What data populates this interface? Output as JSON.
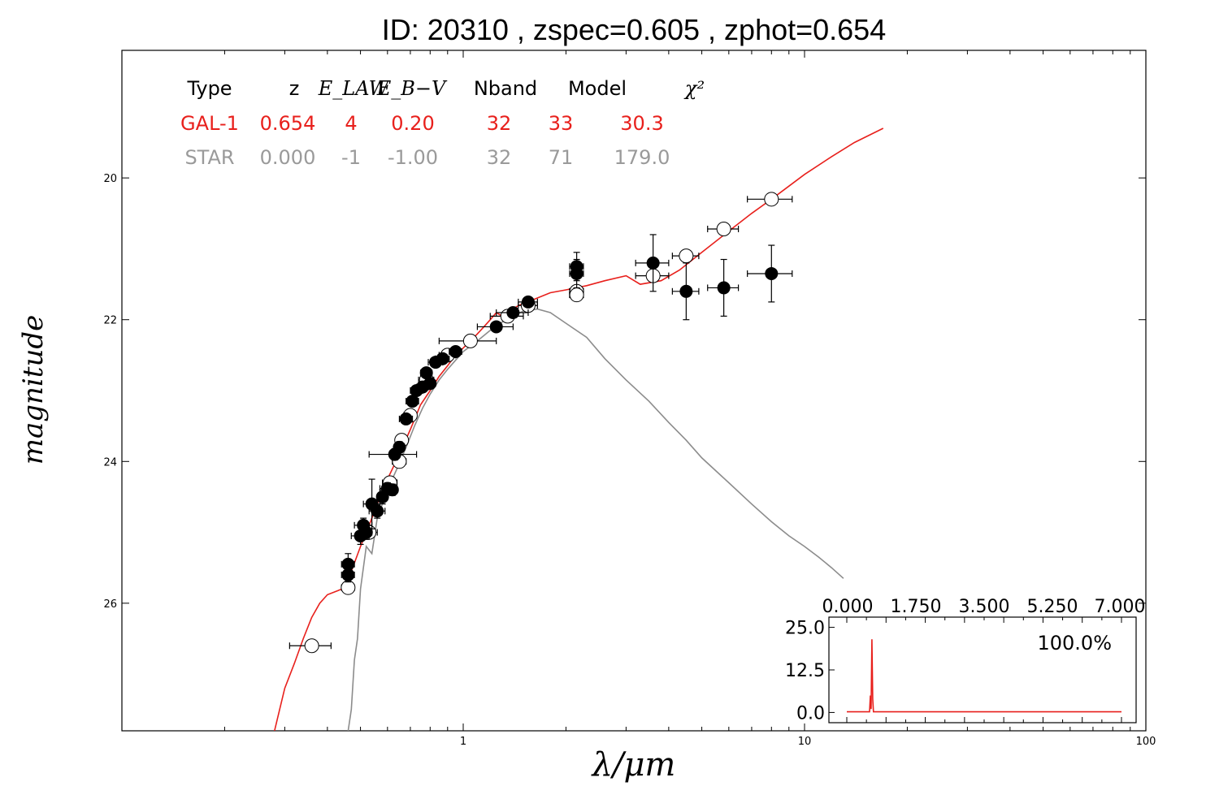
{
  "title": "ID:  20310 , zspec=0.605 , zphot=0.654",
  "table": {
    "headers": [
      "Type",
      "z",
      "E_LAW",
      "E_B−V",
      "Nband",
      "Model",
      "χ²"
    ],
    "rows": [
      {
        "cells": [
          "GAL-1",
          "0.654",
          "4",
          "0.20",
          "32",
          "33",
          "30.3"
        ],
        "color": "#e8201c"
      },
      {
        "cells": [
          "STAR",
          "0.000",
          "-1",
          "-1.00",
          "32",
          "71",
          "179.0"
        ],
        "color": "#9a9a9a"
      }
    ]
  },
  "chart_data": {
    "type": "scatter",
    "xlabel": "λ/μm",
    "ylabel": "magnitude",
    "xscale": "log",
    "xlim": [
      0.1,
      100
    ],
    "ylim": [
      27.8,
      18.2
    ],
    "x_ticks": [
      "1",
      "10",
      "100"
    ],
    "y_ticks": [
      "20",
      "22",
      "24",
      "26"
    ],
    "series": [
      {
        "kind": "line",
        "color": "#e8201c",
        "points": [
          [
            0.28,
            27.8
          ],
          [
            0.3,
            27.2
          ],
          [
            0.32,
            26.85
          ],
          [
            0.34,
            26.5
          ],
          [
            0.36,
            26.2
          ],
          [
            0.38,
            26.0
          ],
          [
            0.4,
            25.88
          ],
          [
            0.43,
            25.82
          ],
          [
            0.45,
            25.78
          ],
          [
            0.47,
            25.55
          ],
          [
            0.5,
            25.2
          ],
          [
            0.53,
            24.9
          ],
          [
            0.56,
            24.6
          ],
          [
            0.6,
            24.25
          ],
          [
            0.65,
            23.9
          ],
          [
            0.7,
            23.55
          ],
          [
            0.75,
            23.2
          ],
          [
            0.8,
            23.0
          ],
          [
            0.85,
            22.8
          ],
          [
            0.9,
            22.65
          ],
          [
            0.95,
            22.5
          ],
          [
            1.0,
            22.4
          ],
          [
            1.05,
            22.3
          ],
          [
            1.1,
            22.2
          ],
          [
            1.15,
            22.1
          ],
          [
            1.2,
            22.0
          ],
          [
            1.25,
            21.9
          ],
          [
            1.3,
            21.95
          ],
          [
            1.35,
            21.9
          ],
          [
            1.45,
            21.8
          ],
          [
            1.6,
            21.72
          ],
          [
            1.8,
            21.62
          ],
          [
            2.0,
            21.58
          ],
          [
            2.3,
            21.52
          ],
          [
            2.6,
            21.45
          ],
          [
            3.0,
            21.38
          ],
          [
            3.3,
            21.5
          ],
          [
            3.8,
            21.45
          ],
          [
            4.3,
            21.3
          ],
          [
            5.0,
            21.05
          ],
          [
            6.0,
            20.75
          ],
          [
            7.0,
            20.5
          ],
          [
            8.0,
            20.3
          ],
          [
            10.0,
            19.95
          ],
          [
            12.0,
            19.7
          ],
          [
            14.0,
            19.5
          ],
          [
            17.0,
            19.3
          ]
        ]
      },
      {
        "kind": "line",
        "color": "#8c8c8c",
        "points": [
          [
            0.46,
            27.8
          ],
          [
            0.47,
            27.5
          ],
          [
            0.48,
            26.8
          ],
          [
            0.49,
            26.5
          ],
          [
            0.5,
            25.8
          ],
          [
            0.52,
            25.2
          ],
          [
            0.54,
            25.3
          ],
          [
            0.56,
            24.8
          ],
          [
            0.6,
            24.4
          ],
          [
            0.64,
            24.1
          ],
          [
            0.68,
            23.8
          ],
          [
            0.72,
            23.5
          ],
          [
            0.76,
            23.25
          ],
          [
            0.8,
            23.05
          ],
          [
            0.85,
            22.85
          ],
          [
            0.9,
            22.7
          ],
          [
            1.0,
            22.45
          ],
          [
            1.1,
            22.3
          ],
          [
            1.2,
            22.15
          ],
          [
            1.35,
            21.98
          ],
          [
            1.5,
            21.88
          ],
          [
            1.65,
            21.85
          ],
          [
            1.8,
            21.9
          ],
          [
            2.0,
            22.05
          ],
          [
            2.3,
            22.25
          ],
          [
            2.6,
            22.55
          ],
          [
            3.0,
            22.85
          ],
          [
            3.5,
            23.15
          ],
          [
            4.0,
            23.45
          ],
          [
            4.5,
            23.7
          ],
          [
            5.0,
            23.95
          ],
          [
            6.0,
            24.3
          ],
          [
            7.0,
            24.6
          ],
          [
            8.0,
            24.85
          ],
          [
            9.0,
            25.05
          ],
          [
            10.0,
            25.2
          ],
          [
            11.0,
            25.35
          ],
          [
            12.0,
            25.5
          ],
          [
            13.0,
            25.65
          ]
        ]
      }
    ],
    "observed": [
      {
        "x": 0.46,
        "y": 25.45,
        "yerr": 0.15,
        "xerr": 0.02
      },
      {
        "x": 0.46,
        "y": 25.6,
        "yerr": 0.1,
        "xerr": 0.02
      },
      {
        "x": 0.5,
        "y": 25.05,
        "yerr": 0.12,
        "xerr": 0.03
      },
      {
        "x": 0.51,
        "y": 24.9,
        "yerr": 0.1,
        "xerr": 0.03
      },
      {
        "x": 0.52,
        "y": 25.0,
        "yerr": 0.1,
        "xerr": 0.02
      },
      {
        "x": 0.54,
        "y": 24.6,
        "yerr": 0.35,
        "xerr": 0.03
      },
      {
        "x": 0.56,
        "y": 24.7,
        "yerr": 0.1,
        "xerr": 0.03
      },
      {
        "x": 0.58,
        "y": 24.5,
        "yerr": 0.1,
        "xerr": 0.02
      },
      {
        "x": 0.6,
        "y": 24.38,
        "yerr": 0.08,
        "xerr": 0.03
      },
      {
        "x": 0.62,
        "y": 24.4,
        "yerr": 0.08,
        "xerr": 0.02
      },
      {
        "x": 0.63,
        "y": 23.9,
        "yerr": 0.08,
        "xerr": 0.1
      },
      {
        "x": 0.65,
        "y": 23.8,
        "yerr": 0.08,
        "xerr": 0.02
      },
      {
        "x": 0.68,
        "y": 23.4,
        "yerr": 0.06,
        "xerr": 0.03
      },
      {
        "x": 0.71,
        "y": 23.15,
        "yerr": 0.06,
        "xerr": 0.03
      },
      {
        "x": 0.73,
        "y": 23.0,
        "yerr": 0.06,
        "xerr": 0.03
      },
      {
        "x": 0.76,
        "y": 22.95,
        "yerr": 0.06,
        "xerr": 0.03
      },
      {
        "x": 0.78,
        "y": 22.75,
        "yerr": 0.06,
        "xerr": 0.03
      },
      {
        "x": 0.8,
        "y": 22.9,
        "yerr": 0.06,
        "xerr": 0.03
      },
      {
        "x": 0.83,
        "y": 22.6,
        "yerr": 0.05,
        "xerr": 0.04
      },
      {
        "x": 0.87,
        "y": 22.55,
        "yerr": 0.05,
        "xerr": 0.04
      },
      {
        "x": 0.95,
        "y": 22.45,
        "yerr": 0.05,
        "xerr": 0.04
      },
      {
        "x": 1.25,
        "y": 22.1,
        "yerr": 0.05,
        "xerr": 0.15
      },
      {
        "x": 1.4,
        "y": 21.9,
        "yerr": 0.05,
        "xerr": 0.15
      },
      {
        "x": 1.55,
        "y": 21.75,
        "yerr": 0.05,
        "xerr": 0.1
      },
      {
        "x": 2.15,
        "y": 21.25,
        "yerr": 0.2,
        "xerr": 0.1
      },
      {
        "x": 2.15,
        "y": 21.35,
        "yerr": 0.2,
        "xerr": 0.1
      },
      {
        "x": 3.6,
        "y": 21.2,
        "yerr": 0.4,
        "xerr": 0.4
      },
      {
        "x": 4.5,
        "y": 21.6,
        "yerr": 0.4,
        "xerr": 0.4
      },
      {
        "x": 5.8,
        "y": 21.55,
        "yerr": 0.4,
        "xerr": 0.6
      },
      {
        "x": 8.0,
        "y": 21.35,
        "yerr": 0.4,
        "xerr": 1.2
      }
    ],
    "model": [
      {
        "x": 0.36,
        "y": 26.6,
        "xerr": 0.05
      },
      {
        "x": 0.46,
        "y": 25.78,
        "xerr": 0.02
      },
      {
        "x": 0.53,
        "y": 25.0,
        "xerr": 0.03
      },
      {
        "x": 0.61,
        "y": 24.3,
        "xerr": 0.03
      },
      {
        "x": 0.65,
        "y": 24.0,
        "xerr": 0.03
      },
      {
        "x": 0.66,
        "y": 23.7,
        "xerr": 0.02
      },
      {
        "x": 0.7,
        "y": 23.35,
        "xerr": 0.03
      },
      {
        "x": 0.78,
        "y": 22.85,
        "xerr": 0.04
      },
      {
        "x": 0.9,
        "y": 22.5,
        "xerr": 0.05
      },
      {
        "x": 1.05,
        "y": 22.3,
        "xerr": 0.2
      },
      {
        "x": 1.35,
        "y": 21.95,
        "xerr": 0.15
      },
      {
        "x": 1.55,
        "y": 21.8,
        "xerr": 0.1
      },
      {
        "x": 2.15,
        "y": 21.6,
        "xerr": 0.1
      },
      {
        "x": 2.15,
        "y": 21.65,
        "xerr": 0.1
      },
      {
        "x": 3.6,
        "y": 21.38,
        "xerr": 0.4
      },
      {
        "x": 4.5,
        "y": 21.1,
        "xerr": 0.4
      },
      {
        "x": 5.8,
        "y": 20.72,
        "xerr": 0.6
      },
      {
        "x": 8.0,
        "y": 20.3,
        "xerr": 1.2
      }
    ],
    "inset": {
      "x_ticks": [
        "0.000",
        "1.750",
        "3.500",
        "5.250",
        "7.000"
      ],
      "y_ticks": [
        "25.0",
        "12.5",
        "0.0"
      ],
      "xlim": [
        0,
        7
      ],
      "ylim": [
        -3,
        28
      ],
      "label": "100.0%",
      "color": "#e8201c",
      "points": [
        [
          0.0,
          0.2
        ],
        [
          0.55,
          0.2
        ],
        [
          0.58,
          0.2
        ],
        [
          0.6,
          5
        ],
        [
          0.62,
          1
        ],
        [
          0.64,
          21.5
        ],
        [
          0.66,
          4
        ],
        [
          0.68,
          0.2
        ],
        [
          7.0,
          0.2
        ]
      ]
    }
  }
}
